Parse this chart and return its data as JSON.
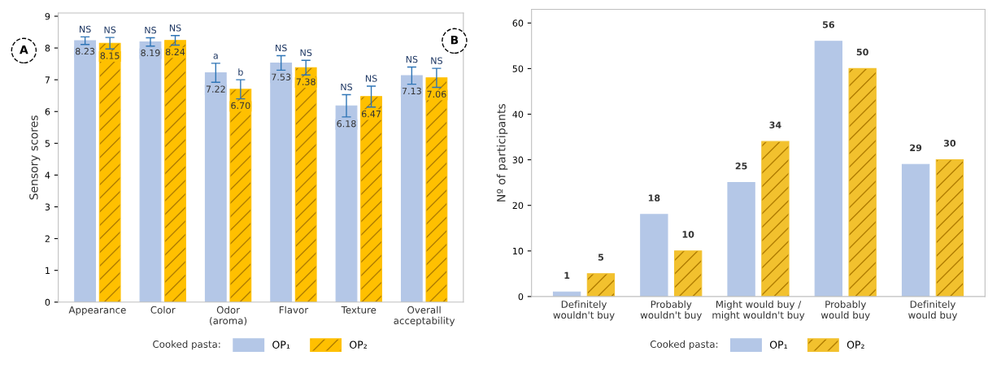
{
  "chart_data": [
    {
      "type": "bar",
      "ylabel": "Sensory scores",
      "categories": [
        "Appearance",
        "Color",
        "Odor\n(aroma)",
        "Flavor",
        "Texture",
        "Overall\nacceptability"
      ],
      "series": [
        {
          "name": "OP₁",
          "color": "#b4c7e7",
          "values": [
            8.23,
            8.19,
            7.22,
            7.53,
            6.18,
            7.13
          ],
          "errors": [
            0.12,
            0.13,
            0.3,
            0.23,
            0.35,
            0.27
          ],
          "value_labels": [
            "8.23",
            "8.19",
            "7.22",
            "7.53",
            "6.18",
            "7.13"
          ]
        },
        {
          "name": "OP₂",
          "color": "#ffc000",
          "values": [
            8.15,
            8.24,
            6.7,
            7.38,
            6.47,
            7.06
          ],
          "errors": [
            0.18,
            0.15,
            0.3,
            0.23,
            0.33,
            0.3
          ],
          "value_labels": [
            "8.15",
            "8.24",
            "6.70",
            "7.38",
            "6.47",
            "7.06"
          ]
        }
      ],
      "ylim": [
        0,
        9.1
      ],
      "yticks": [
        0,
        1,
        2,
        3,
        4,
        5,
        6,
        7,
        8,
        9
      ],
      "grid": false,
      "legend": "bottom",
      "legend_title": "Cooked pasta:",
      "annotations": [
        "A",
        "NS",
        "NS",
        "NS",
        "NS",
        "a",
        "b",
        "NS",
        "NS",
        "NS",
        "NS",
        "NS",
        "NS"
      ]
    },
    {
      "type": "bar",
      "ylabel": "Nº of participants",
      "categories": [
        "Definitely\nwouldn't buy",
        "Probably\nwouldn't buy",
        "Might would buy /\nmight wouldn't buy",
        "Probably\nwould buy",
        "Definitely\nwould buy"
      ],
      "series": [
        {
          "name": "OP₁",
          "color": "#b4c7e7",
          "values": [
            1,
            18,
            25,
            56,
            29
          ]
        },
        {
          "name": "OP₂",
          "color": "#f2c12e",
          "values": [
            5,
            10,
            34,
            50,
            30
          ]
        }
      ],
      "data_labels": true,
      "ylim": [
        0,
        63
      ],
      "yticks": [
        0,
        10,
        20,
        30,
        40,
        50,
        60
      ],
      "grid": false,
      "legend": "bottom",
      "legend_title": "Cooked pasta:",
      "annotations": [
        "B"
      ]
    }
  ]
}
